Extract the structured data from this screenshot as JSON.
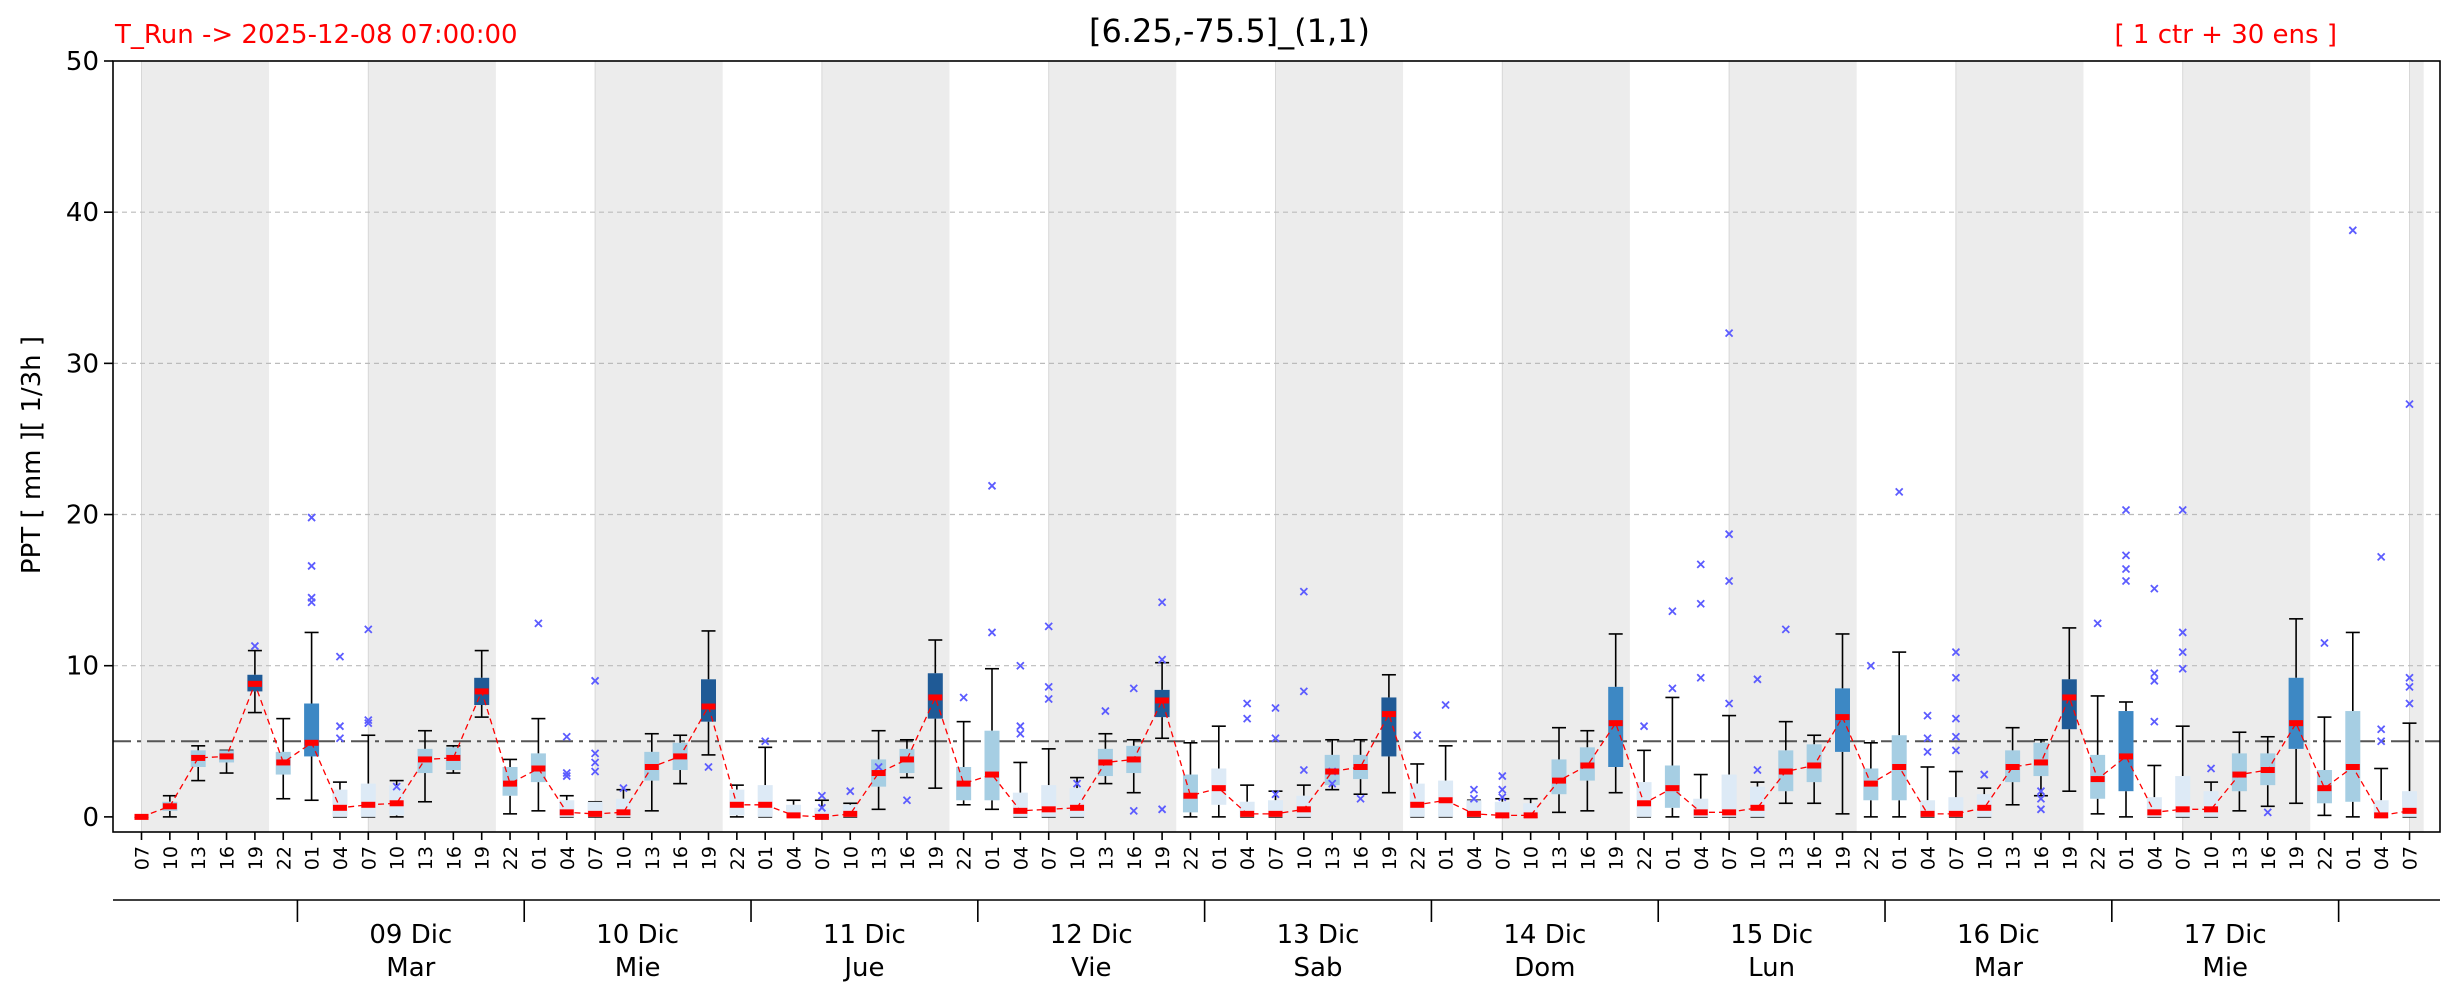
{
  "header": {
    "run_label": "T_Run -> 2025-12-08  07:00:00",
    "title": "[6.25,-75.5]_(1,1)",
    "ensemble_label": "[ 1 ctr + 30 ens ]"
  },
  "chart_data": {
    "type": "box",
    "title": "[6.25,-75.5]_(1,1)",
    "ylabel": "PPT  [ mm ][ 1/3h ]",
    "xlabel": "",
    "ylim": [
      -1,
      50
    ],
    "yticks": [
      0,
      10,
      20,
      30,
      40,
      50
    ],
    "grid": "horizontal dashed at 10,20,30,40",
    "threshold_line": 5,
    "hours": [
      "07",
      "10",
      "13",
      "16",
      "19",
      "22",
      "01",
      "04",
      "07",
      "10",
      "13",
      "16",
      "19",
      "22",
      "01",
      "04",
      "07",
      "10",
      "13",
      "16",
      "19",
      "22",
      "01",
      "04",
      "07",
      "10",
      "13",
      "16",
      "19",
      "22",
      "01",
      "04",
      "07",
      "10",
      "13",
      "16",
      "19",
      "22",
      "01",
      "04",
      "07",
      "10",
      "13",
      "16",
      "19",
      "22",
      "01",
      "04",
      "07",
      "10",
      "13",
      "16",
      "19",
      "22",
      "01",
      "04",
      "07",
      "10",
      "13",
      "16",
      "19",
      "22",
      "01",
      "04",
      "07",
      "10",
      "13",
      "16",
      "19",
      "22",
      "01",
      "04",
      "07",
      "10",
      "13",
      "16",
      "19",
      "22",
      "01",
      "04",
      "07"
    ],
    "days": [
      {
        "date": "09 Dic",
        "weekday": "Mar"
      },
      {
        "date": "10 Dic",
        "weekday": "Mie"
      },
      {
        "date": "11 Dic",
        "weekday": "Jue"
      },
      {
        "date": "12 Dic",
        "weekday": "Vie"
      },
      {
        "date": "13 Dic",
        "weekday": "Sab"
      },
      {
        "date": "14 Dic",
        "weekday": "Dom"
      },
      {
        "date": "15 Dic",
        "weekday": "Lun"
      },
      {
        "date": "16 Dic",
        "weekday": "Mar"
      },
      {
        "date": "17 Dic",
        "weekday": "Mie"
      }
    ],
    "median": [
      0,
      0.7,
      3.9,
      4,
      8.8,
      3.6,
      4.9,
      0.6,
      0.8,
      0.9,
      3.8,
      3.9,
      8.3,
      2.2,
      3.2,
      0.3,
      0.2,
      0.3,
      3.3,
      4,
      7.3,
      0.8,
      0.8,
      0.1,
      0,
      0.2,
      2.9,
      3.8,
      7.9,
      2.2,
      2.8,
      0.4,
      0.5,
      0.6,
      3.6,
      3.8,
      7.7,
      1.4,
      1.9,
      0.2,
      0.2,
      0.5,
      3,
      3.3,
      6.8,
      0.8,
      1.1,
      0.2,
      0.1,
      0.1,
      2.4,
      3.4,
      6.2,
      0.9,
      1.9,
      0.3,
      0.3,
      0.6,
      3,
      3.4,
      6.6,
      2.2,
      3.3,
      0.2,
      0.2,
      0.6,
      3.3,
      3.6,
      7.9,
      2.5,
      4,
      0.3,
      0.5,
      0.5,
      2.8,
      3.1,
      6.2,
      1.9,
      3.3,
      0.1,
      0.4
    ],
    "q1": [
      0,
      0.4,
      3.3,
      3.6,
      8.3,
      2.8,
      4,
      0,
      0,
      0.1,
      2.9,
      3.1,
      7.4,
      1.4,
      2.3,
      0,
      0,
      0,
      2.4,
      3.1,
      6.3,
      0.1,
      0,
      0,
      0,
      0,
      2,
      2.9,
      6.5,
      1.1,
      1.1,
      0,
      0,
      0,
      2.7,
      2.9,
      6.6,
      0.3,
      0.8,
      0,
      0,
      0,
      2.1,
      2.5,
      4,
      0,
      0,
      0,
      0,
      0,
      1.5,
      2.4,
      3.3,
      0,
      0.6,
      0,
      0,
      0,
      1.7,
      2.3,
      4.3,
      1.1,
      1.1,
      0,
      0,
      0,
      2.3,
      2.7,
      5.8,
      1.2,
      1.7,
      0,
      0,
      0,
      1.7,
      2.1,
      4.5,
      0.9,
      1,
      0,
      0
    ],
    "q3": [
      0,
      1,
      4.4,
      4.4,
      9.4,
      4.3,
      7.5,
      1.8,
      2.2,
      2.1,
      4.5,
      4.6,
      9.2,
      3.3,
      4.2,
      1.1,
      1,
      1.2,
      4.3,
      4.9,
      9.1,
      1.8,
      2.1,
      0.8,
      0.6,
      0.8,
      3.8,
      4.5,
      9.5,
      3.3,
      5.7,
      1.6,
      2.1,
      1.9,
      4.5,
      4.7,
      8.4,
      2.8,
      3.2,
      1,
      1.1,
      1.4,
      4.1,
      4.1,
      7.9,
      2.2,
      2.4,
      1.1,
      1,
      0.9,
      3.8,
      4.6,
      8.6,
      2.3,
      3.4,
      1.2,
      2.8,
      2,
      4.4,
      4.8,
      8.5,
      3.2,
      5.4,
      1.1,
      1.3,
      1.5,
      4.4,
      4.9,
      9.1,
      4.1,
      7,
      1.3,
      2.7,
      1.7,
      4.2,
      4.2,
      9.2,
      3.1,
      7,
      1.1,
      1.7
    ],
    "whisker_low": [
      0,
      0,
      2.4,
      2.9,
      6.9,
      1.2,
      1.1,
      0,
      0,
      0,
      1,
      2.9,
      6.6,
      0.2,
      0.4,
      0,
      0,
      0,
      0.4,
      2.2,
      4.1,
      0,
      0,
      0,
      0,
      0,
      0.5,
      2.6,
      1.9,
      0.8,
      0.5,
      0,
      0,
      0,
      2.2,
      1.6,
      5.2,
      0,
      0,
      0,
      0,
      0,
      1.8,
      1.5,
      1.6,
      0,
      0,
      0,
      0,
      0,
      0.3,
      0.4,
      1.6,
      0,
      0,
      0,
      0,
      0,
      0.9,
      0.9,
      0.2,
      0,
      0,
      0,
      0,
      0,
      0.8,
      1.4,
      1.7,
      0.2,
      0,
      0,
      0,
      0,
      0.4,
      0.7,
      0.9,
      0.1,
      0,
      0,
      0
    ],
    "whisker_high": [
      0,
      1.4,
      4.7,
      4.4,
      11,
      6.5,
      12.2,
      2.3,
      5.4,
      2.4,
      5.7,
      4.7,
      11,
      3.8,
      6.5,
      1.4,
      1,
      1.8,
      5.5,
      5.4,
      12.3,
      2.1,
      4.6,
      1.1,
      1.1,
      0.9,
      5.7,
      5.1,
      11.7,
      6.3,
      9.8,
      3.6,
      4.5,
      2.6,
      5.5,
      5.1,
      10.2,
      4.9,
      6,
      2.1,
      1.7,
      2.1,
      5.1,
      5.1,
      9.4,
      3.5,
      4.7,
      1.1,
      1.2,
      1.2,
      5.9,
      5.7,
      12.1,
      4.4,
      7.9,
      2.8,
      6.7,
      2.3,
      6.3,
      5.4,
      12.1,
      4.9,
      10.9,
      3.3,
      3,
      1.9,
      5.9,
      5.1,
      12.5,
      8,
      7.6,
      3.4,
      6,
      2.3,
      5.6,
      5.3,
      13.1,
      6.6,
      12.2,
      3.2,
      6.2
    ],
    "box_color": [
      "#a6cee3",
      "#a6cee3",
      "#a6cee3",
      "#a6cee3",
      "#1f5a96",
      "#a6cee3",
      "#3d88c4",
      "#ddeaf6",
      "#ddeaf6",
      "#ddeaf6",
      "#a6cee3",
      "#a6cee3",
      "#1f5a96",
      "#a6cee3",
      "#a6cee3",
      "#ddeaf6",
      "#ddeaf6",
      "#ddeaf6",
      "#a6cee3",
      "#a6cee3",
      "#1f5a96",
      "#ddeaf6",
      "#ddeaf6",
      "#ddeaf6",
      "#ddeaf6",
      "#ddeaf6",
      "#a6cee3",
      "#a6cee3",
      "#1f5a96",
      "#a6cee3",
      "#a6cee3",
      "#ddeaf6",
      "#ddeaf6",
      "#ddeaf6",
      "#a6cee3",
      "#a6cee3",
      "#1f5a96",
      "#a6cee3",
      "#ddeaf6",
      "#ddeaf6",
      "#ddeaf6",
      "#ddeaf6",
      "#a6cee3",
      "#a6cee3",
      "#1f5a96",
      "#ddeaf6",
      "#ddeaf6",
      "#ddeaf6",
      "#ddeaf6",
      "#ddeaf6",
      "#a6cee3",
      "#a6cee3",
      "#3d88c4",
      "#ddeaf6",
      "#a6cee3",
      "#ddeaf6",
      "#ddeaf6",
      "#ddeaf6",
      "#a6cee3",
      "#a6cee3",
      "#3d88c4",
      "#a6cee3",
      "#a6cee3",
      "#ddeaf6",
      "#ddeaf6",
      "#ddeaf6",
      "#a6cee3",
      "#a6cee3",
      "#1f5a96",
      "#a6cee3",
      "#3d88c4",
      "#ddeaf6",
      "#ddeaf6",
      "#ddeaf6",
      "#a6cee3",
      "#a6cee3",
      "#3d88c4",
      "#a6cee3",
      "#a6cee3",
      "#ddeaf6",
      "#ddeaf6"
    ],
    "outliers": [
      {
        "i": 4,
        "v": 11.3
      },
      {
        "i": 6,
        "v": 19.8
      },
      {
        "i": 6,
        "v": 16.6
      },
      {
        "i": 6,
        "v": 14.5
      },
      {
        "i": 6,
        "v": 14.2
      },
      {
        "i": 7,
        "v": 10.6
      },
      {
        "i": 7,
        "v": 6
      },
      {
        "i": 7,
        "v": 5.2
      },
      {
        "i": 8,
        "v": 12.4
      },
      {
        "i": 8,
        "v": 6.4
      },
      {
        "i": 8,
        "v": 6.2
      },
      {
        "i": 9,
        "v": 2
      },
      {
        "i": 14,
        "v": 12.8
      },
      {
        "i": 15,
        "v": 5.3
      },
      {
        "i": 15,
        "v": 2.9
      },
      {
        "i": 15,
        "v": 2.7
      },
      {
        "i": 16,
        "v": 9
      },
      {
        "i": 16,
        "v": 4.2
      },
      {
        "i": 16,
        "v": 3.6
      },
      {
        "i": 16,
        "v": 3
      },
      {
        "i": 17,
        "v": 1.9
      },
      {
        "i": 20,
        "v": 3.3
      },
      {
        "i": 22,
        "v": 5
      },
      {
        "i": 24,
        "v": 1.4
      },
      {
        "i": 24,
        "v": 0.6
      },
      {
        "i": 25,
        "v": 1.7
      },
      {
        "i": 26,
        "v": 3.3
      },
      {
        "i": 27,
        "v": 1.1
      },
      {
        "i": 29,
        "v": 7.9
      },
      {
        "i": 30,
        "v": 21.9
      },
      {
        "i": 30,
        "v": 12.2
      },
      {
        "i": 31,
        "v": 10
      },
      {
        "i": 31,
        "v": 6
      },
      {
        "i": 31,
        "v": 5.5
      },
      {
        "i": 32,
        "v": 12.6
      },
      {
        "i": 32,
        "v": 8.6
      },
      {
        "i": 32,
        "v": 7.8
      },
      {
        "i": 33,
        "v": 2.2
      },
      {
        "i": 34,
        "v": 7
      },
      {
        "i": 35,
        "v": 8.5
      },
      {
        "i": 35,
        "v": 0.4
      },
      {
        "i": 36,
        "v": 14.2
      },
      {
        "i": 36,
        "v": 10.4
      },
      {
        "i": 36,
        "v": 0.5
      },
      {
        "i": 39,
        "v": 7.5
      },
      {
        "i": 39,
        "v": 6.5
      },
      {
        "i": 40,
        "v": 7.2
      },
      {
        "i": 40,
        "v": 5.2
      },
      {
        "i": 40,
        "v": 1.5
      },
      {
        "i": 41,
        "v": 14.9
      },
      {
        "i": 41,
        "v": 8.3
      },
      {
        "i": 41,
        "v": 3.1
      },
      {
        "i": 42,
        "v": 3
      },
      {
        "i": 42,
        "v": 2.2
      },
      {
        "i": 43,
        "v": 1.2
      },
      {
        "i": 45,
        "v": 5.4
      },
      {
        "i": 46,
        "v": 7.4
      },
      {
        "i": 47,
        "v": 1.8
      },
      {
        "i": 47,
        "v": 1.2
      },
      {
        "i": 48,
        "v": 2.7
      },
      {
        "i": 48,
        "v": 1.8
      },
      {
        "i": 48,
        "v": 1.3
      },
      {
        "i": 53,
        "v": 6
      },
      {
        "i": 54,
        "v": 13.6
      },
      {
        "i": 54,
        "v": 8.5
      },
      {
        "i": 55,
        "v": 16.7
      },
      {
        "i": 55,
        "v": 14.1
      },
      {
        "i": 55,
        "v": 9.2
      },
      {
        "i": 56,
        "v": 32
      },
      {
        "i": 56,
        "v": 18.7
      },
      {
        "i": 56,
        "v": 15.6
      },
      {
        "i": 56,
        "v": 7.5
      },
      {
        "i": 57,
        "v": 9.1
      },
      {
        "i": 57,
        "v": 3.1
      },
      {
        "i": 58,
        "v": 12.4
      },
      {
        "i": 61,
        "v": 10
      },
      {
        "i": 62,
        "v": 21.5
      },
      {
        "i": 63,
        "v": 6.7
      },
      {
        "i": 63,
        "v": 5.2
      },
      {
        "i": 63,
        "v": 4.3
      },
      {
        "i": 64,
        "v": 10.9
      },
      {
        "i": 64,
        "v": 9.2
      },
      {
        "i": 64,
        "v": 6.5
      },
      {
        "i": 64,
        "v": 5.3
      },
      {
        "i": 64,
        "v": 4.4
      },
      {
        "i": 65,
        "v": 2.8
      },
      {
        "i": 67,
        "v": 1.7
      },
      {
        "i": 67,
        "v": 1.2
      },
      {
        "i": 67,
        "v": 0.5
      },
      {
        "i": 69,
        "v": 12.8
      },
      {
        "i": 70,
        "v": 20.3
      },
      {
        "i": 70,
        "v": 17.3
      },
      {
        "i": 70,
        "v": 16.4
      },
      {
        "i": 70,
        "v": 15.6
      },
      {
        "i": 71,
        "v": 15.1
      },
      {
        "i": 71,
        "v": 9.5
      },
      {
        "i": 71,
        "v": 9
      },
      {
        "i": 71,
        "v": 6.3
      },
      {
        "i": 72,
        "v": 20.3
      },
      {
        "i": 72,
        "v": 12.2
      },
      {
        "i": 72,
        "v": 10.9
      },
      {
        "i": 72,
        "v": 9.8
      },
      {
        "i": 73,
        "v": 3.2
      },
      {
        "i": 75,
        "v": 0.3
      },
      {
        "i": 77,
        "v": 11.5
      },
      {
        "i": 78,
        "v": 38.8
      },
      {
        "i": 79,
        "v": 17.2
      },
      {
        "i": 79,
        "v": 5.8
      },
      {
        "i": 79,
        "v": 5
      },
      {
        "i": 80,
        "v": 27.3
      },
      {
        "i": 80,
        "v": 9.2
      },
      {
        "i": 80,
        "v": 8.6
      },
      {
        "i": 80,
        "v": 7.5
      }
    ],
    "colors": {
      "shade": "#ececec",
      "median_mark": "#ff0000",
      "median_line": "#ff0000",
      "outlier": "#5c5cff",
      "threshold": "#555555",
      "grid": "#bbbbbb"
    }
  }
}
